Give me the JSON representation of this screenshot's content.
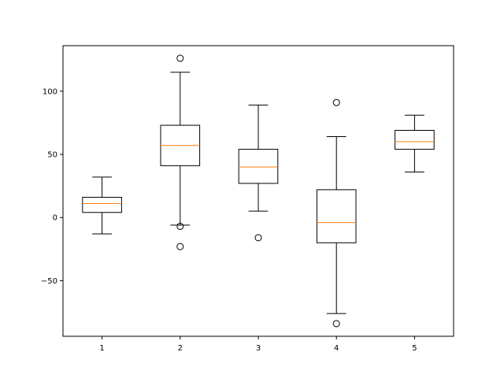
{
  "chart_data": {
    "type": "box",
    "title": "",
    "xlabel": "",
    "ylabel": "",
    "categories": [
      "1",
      "2",
      "3",
      "4",
      "5"
    ],
    "ylim": [
      -94,
      136
    ],
    "yticks": [
      -50,
      0,
      50,
      100
    ],
    "ytick_labels": [
      "−50",
      "0",
      "50",
      "100"
    ],
    "grid": false,
    "boxes": [
      {
        "label": "1",
        "whisker_low": -13,
        "q1": 4,
        "median": 11,
        "q3": 16,
        "whisker_high": 32,
        "outliers": []
      },
      {
        "label": "2",
        "whisker_low": -6,
        "q1": 41,
        "median": 57,
        "q3": 73,
        "whisker_high": 115,
        "outliers": [
          126,
          -7,
          -23
        ]
      },
      {
        "label": "3",
        "whisker_low": 5,
        "q1": 27,
        "median": 40,
        "q3": 54,
        "whisker_high": 89,
        "outliers": [
          -16
        ]
      },
      {
        "label": "4",
        "whisker_low": -76,
        "q1": -20,
        "median": -4,
        "q3": 22,
        "whisker_high": 64,
        "outliers": [
          91,
          -84
        ]
      },
      {
        "label": "5",
        "whisker_low": 36,
        "q1": 54,
        "median": 60,
        "q3": 69,
        "whisker_high": 81,
        "outliers": []
      }
    ],
    "colors": {
      "box": "#000000",
      "median": "#ff7f0e",
      "flier": "#000000"
    }
  }
}
